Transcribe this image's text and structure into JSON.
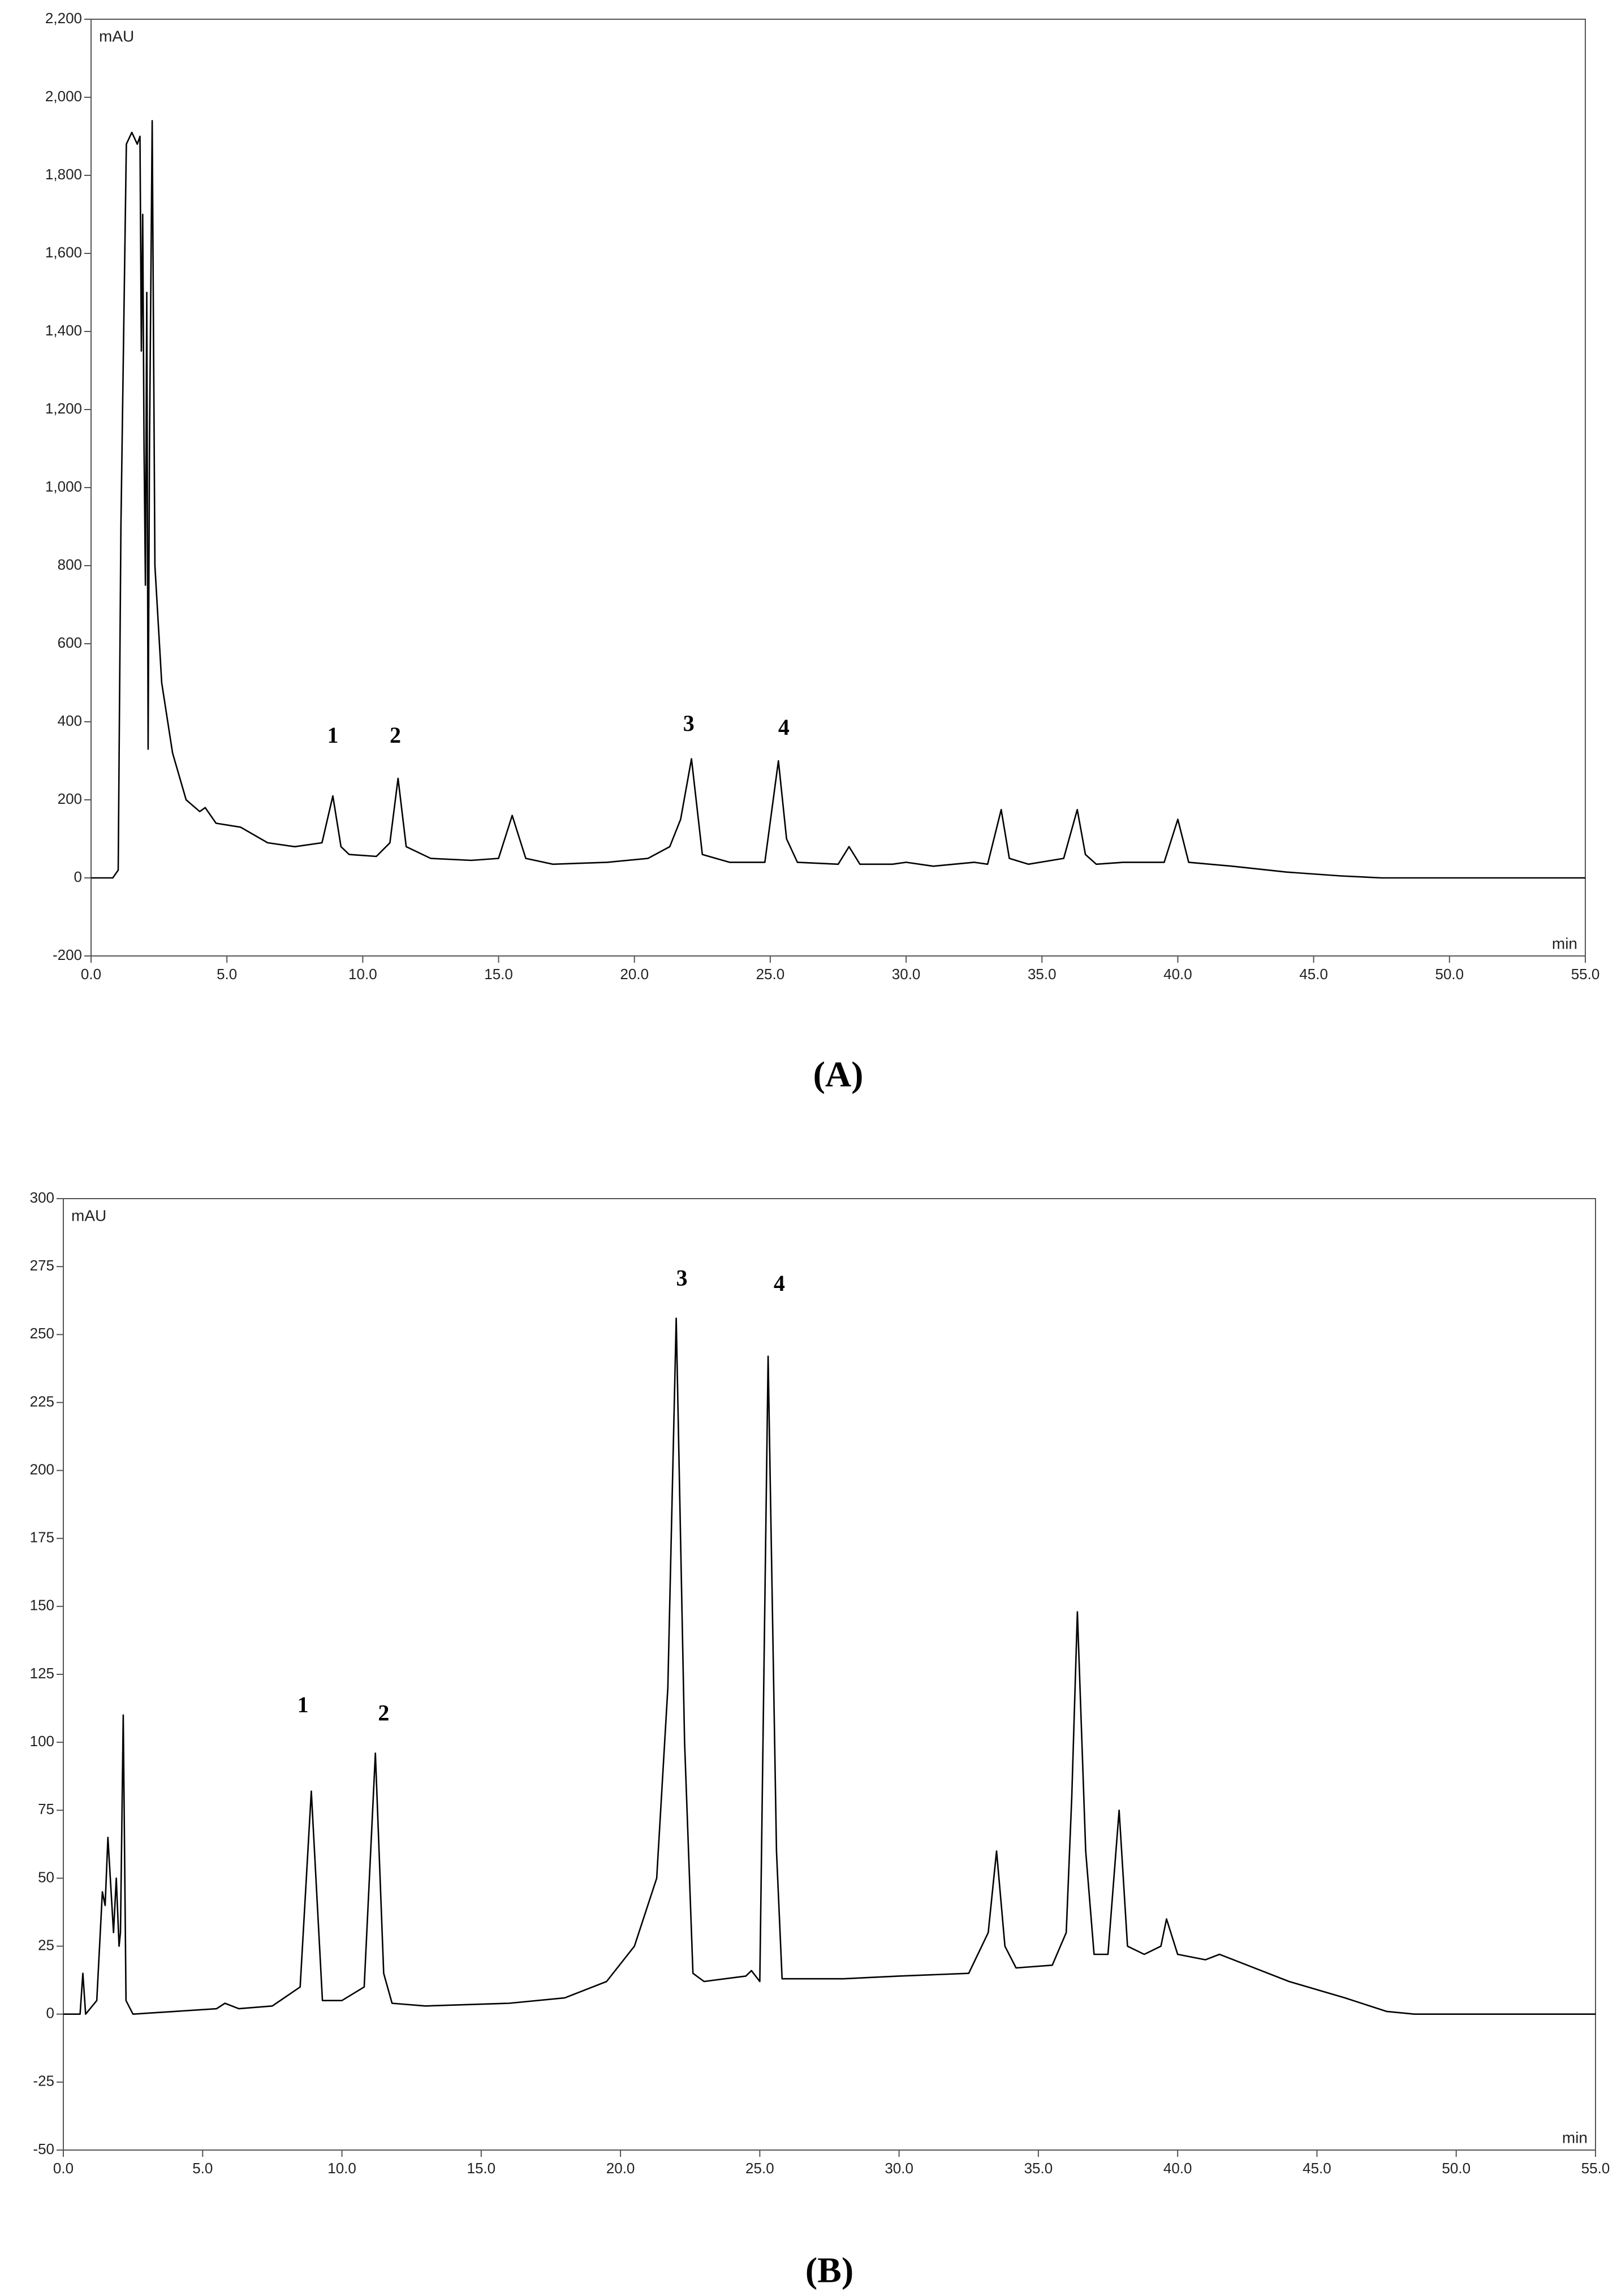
{
  "chart_data": [
    {
      "type": "line",
      "panel_label": "(A)",
      "ylabel": "mAU",
      "xlabel": "min",
      "color": "#000000",
      "xlim": [
        0,
        55
      ],
      "ylim": [
        -200,
        2200
      ],
      "xticks": [
        {
          "value": 0,
          "label": "0.0"
        },
        {
          "value": 5,
          "label": "5.0"
        },
        {
          "value": 10,
          "label": "10.0"
        },
        {
          "value": 15,
          "label": "15.0"
        },
        {
          "value": 20,
          "label": "20.0"
        },
        {
          "value": 25,
          "label": "25.0"
        },
        {
          "value": 30,
          "label": "30.0"
        },
        {
          "value": 35,
          "label": "35.0"
        },
        {
          "value": 40,
          "label": "40.0"
        },
        {
          "value": 45,
          "label": "45.0"
        },
        {
          "value": 50,
          "label": "50.0"
        },
        {
          "value": 55,
          "label": "55.0"
        }
      ],
      "yticks": [
        -200,
        0,
        200,
        400,
        600,
        800,
        {
          "value": 1000,
          "label": "1,000"
        },
        {
          "value": 1200,
          "label": "1,200"
        },
        {
          "value": 1400,
          "label": "1,400"
        },
        {
          "value": 1600,
          "label": "1,600"
        },
        {
          "value": 1800,
          "label": "1,800"
        },
        {
          "value": 2000,
          "label": "2,000"
        },
        {
          "value": 2200,
          "label": "2,200"
        }
      ],
      "x": [
        0,
        0.8,
        1.0,
        1.1,
        1.3,
        1.5,
        1.7,
        1.8,
        1.85,
        1.9,
        1.95,
        2.0,
        2.05,
        2.1,
        2.15,
        2.25,
        2.35,
        2.6,
        3.0,
        3.5,
        4.0,
        4.2,
        4.6,
        5.5,
        6.5,
        7.5,
        8.5,
        8.9,
        9.2,
        9.5,
        10.5,
        11.0,
        11.3,
        11.6,
        12.5,
        14.0,
        15.0,
        15.5,
        16.0,
        17.0,
        19.0,
        20.5,
        21.3,
        21.7,
        22.1,
        22.5,
        23.5,
        24.8,
        25.3,
        25.6,
        26.0,
        27.5,
        27.9,
        28.3,
        29.5,
        30.0,
        31.0,
        32.5,
        33.0,
        33.5,
        33.8,
        34.5,
        35.8,
        36.0,
        36.3,
        36.6,
        37.0,
        38.0,
        39.5,
        40.0,
        40.4,
        42.0,
        44.0,
        46.0,
        47.5,
        55.0
      ],
      "values": [
        0,
        0,
        20,
        900,
        1880,
        1910,
        1880,
        1900,
        1350,
        1700,
        1100,
        750,
        1500,
        330,
        1100,
        1940,
        800,
        500,
        320,
        200,
        170,
        180,
        140,
        130,
        90,
        80,
        90,
        210,
        80,
        60,
        55,
        90,
        255,
        80,
        50,
        45,
        50,
        160,
        50,
        35,
        40,
        50,
        80,
        150,
        305,
        60,
        40,
        40,
        300,
        100,
        40,
        35,
        80,
        35,
        35,
        40,
        30,
        40,
        35,
        175,
        50,
        35,
        50,
        100,
        175,
        60,
        35,
        40,
        40,
        150,
        40,
        30,
        15,
        5,
        0,
        0
      ],
      "annotations": [
        {
          "text": "1",
          "x": 8.9,
          "y": 360
        },
        {
          "text": "2",
          "x": 11.2,
          "y": 360
        },
        {
          "text": "3",
          "x": 22.0,
          "y": 390
        },
        {
          "text": "4",
          "x": 25.5,
          "y": 380
        }
      ]
    },
    {
      "type": "line",
      "panel_label": "(B)",
      "ylabel": "mAU",
      "xlabel": "min",
      "color": "#000000",
      "xlim": [
        0,
        55
      ],
      "ylim": [
        -50,
        300
      ],
      "xticks": [
        {
          "value": 0,
          "label": "0.0"
        },
        {
          "value": 5,
          "label": "5.0"
        },
        {
          "value": 10,
          "label": "10.0"
        },
        {
          "value": 15,
          "label": "15.0"
        },
        {
          "value": 20,
          "label": "20.0"
        },
        {
          "value": 25,
          "label": "25.0"
        },
        {
          "value": 30,
          "label": "30.0"
        },
        {
          "value": 35,
          "label": "35.0"
        },
        {
          "value": 40,
          "label": "40.0"
        },
        {
          "value": 45,
          "label": "45.0"
        },
        {
          "value": 50,
          "label": "50.0"
        },
        {
          "value": 55,
          "label": "55.0"
        }
      ],
      "yticks": [
        -50,
        -25,
        0,
        25,
        50,
        75,
        100,
        125,
        150,
        175,
        200,
        225,
        250,
        275,
        300
      ],
      "x": [
        0,
        0.6,
        0.7,
        0.8,
        1.2,
        1.4,
        1.5,
        1.6,
        1.8,
        1.9,
        2.0,
        2.05,
        2.15,
        2.25,
        2.5,
        4.0,
        5.5,
        5.8,
        6.3,
        7.5,
        8.5,
        8.9,
        9.3,
        10.0,
        10.8,
        11.2,
        11.5,
        11.8,
        13.0,
        16.0,
        18.0,
        19.5,
        20.5,
        21.3,
        21.7,
        22.0,
        22.3,
        22.6,
        23.0,
        24.5,
        24.7,
        25.0,
        25.3,
        25.6,
        25.8,
        28.0,
        30.0,
        32.5,
        33.2,
        33.5,
        33.8,
        34.2,
        35.5,
        36.0,
        36.2,
        36.4,
        36.7,
        37.0,
        37.5,
        37.9,
        38.2,
        38.8,
        39.4,
        39.6,
        40.0,
        41.0,
        41.5,
        42.0,
        44.0,
        46.0,
        47.5,
        48.5,
        55.0
      ],
      "values": [
        0,
        0,
        15,
        0,
        5,
        45,
        40,
        65,
        30,
        50,
        25,
        30,
        110,
        5,
        0,
        1,
        2,
        4,
        2,
        3,
        10,
        82,
        5,
        5,
        10,
        96,
        15,
        4,
        3,
        4,
        6,
        12,
        25,
        50,
        120,
        256,
        100,
        15,
        12,
        14,
        16,
        12,
        242,
        60,
        13,
        13,
        14,
        15,
        30,
        60,
        25,
        17,
        18,
        30,
        80,
        148,
        60,
        22,
        22,
        75,
        25,
        22,
        25,
        35,
        22,
        20,
        22,
        20,
        12,
        6,
        1,
        0,
        0
      ],
      "annotations": [
        {
          "text": "1",
          "x": 8.6,
          "y": 113
        },
        {
          "text": "2",
          "x": 11.5,
          "y": 110
        },
        {
          "text": "3",
          "x": 22.2,
          "y": 270
        },
        {
          "text": "4",
          "x": 25.7,
          "y": 268
        }
      ]
    }
  ]
}
